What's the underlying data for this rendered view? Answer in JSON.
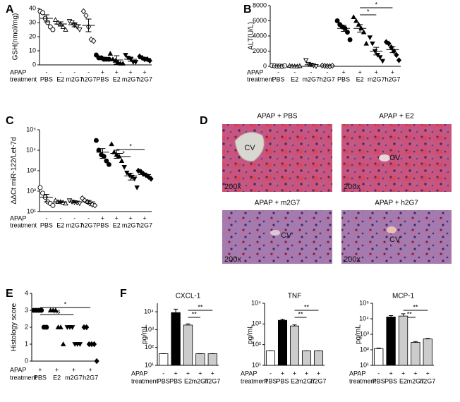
{
  "chart_data": [
    {
      "type": "dot",
      "panel": "A",
      "y_label": "GSH(nmol/mg)",
      "ylim": [
        0,
        40
      ],
      "yticks": [
        0,
        10,
        20,
        30,
        40
      ],
      "row_labels": [
        "APAP",
        "treatment"
      ],
      "apap": [
        "-",
        "-",
        "-",
        "-",
        "+",
        "+",
        "+",
        "+"
      ],
      "categories": [
        "PBS",
        "E2",
        "m2G7",
        "h2G7",
        "PBS",
        "E2",
        "m2G7",
        "h2G7"
      ],
      "markers": [
        "circle-open",
        "triangle-open",
        "triangle-down-open",
        "diamond-open",
        "circle",
        "triangle",
        "triangle-down",
        "diamond"
      ],
      "points": [
        [
          38,
          37,
          33,
          30,
          27,
          25
        ],
        [
          32,
          30,
          29,
          27,
          25
        ],
        [
          31,
          30,
          28,
          27,
          25
        ],
        [
          38,
          35,
          27,
          18,
          17
        ],
        [
          7,
          5,
          5,
          4,
          4,
          4
        ],
        [
          8,
          4,
          3,
          2,
          1,
          1
        ],
        [
          7,
          5,
          4,
          2,
          2
        ],
        [
          6,
          5,
          4,
          4,
          3
        ]
      ],
      "means": [
        33,
        29,
        28.5,
        28,
        5,
        3.5,
        4,
        4.5
      ],
      "errors": [
        2.5,
        1.5,
        1.5,
        4.5,
        0.5,
        3,
        1.5,
        0.8
      ]
    },
    {
      "type": "dot",
      "panel": "B",
      "y_label": "ALT(U/L)",
      "ylim": [
        0,
        8000
      ],
      "yticks": [
        0,
        2000,
        4000,
        6000,
        8000
      ],
      "row_labels": [
        "APAP",
        "treatment"
      ],
      "apap": [
        "-",
        "-",
        "-",
        "-",
        "+",
        "+",
        "+",
        "+"
      ],
      "categories": [
        "PBS",
        "E2",
        "m2G7",
        "h2G7",
        "PBS",
        "E2",
        "m2G7",
        "h2G7"
      ],
      "markers": [
        "circle-open",
        "triangle-open",
        "triangle-down-open",
        "diamond-open",
        "circle",
        "triangle",
        "triangle-down",
        "diamond"
      ],
      "points": [
        [
          100,
          50,
          20,
          30,
          0,
          60
        ],
        [
          80,
          20,
          10,
          0,
          50
        ],
        [
          800,
          300,
          200,
          100,
          0
        ],
        [
          100,
          50,
          20,
          0,
          80
        ],
        [
          6000,
          5500,
          5200,
          5000,
          4500,
          3500
        ],
        [
          6500,
          6000,
          5500,
          5000,
          4500,
          3000
        ],
        [
          3800,
          3000,
          2000,
          1500,
          1200,
          700
        ],
        [
          3200,
          3000,
          2500,
          2000,
          1500,
          800
        ]
      ],
      "means": [
        50,
        30,
        200,
        50,
        5000,
        5000,
        2000,
        2200
      ],
      "errors": [
        20,
        20,
        150,
        20,
        400,
        500,
        500,
        400
      ],
      "brackets": [
        {
          "label": "*",
          "between": [
            5,
            6
          ]
        },
        {
          "label": "*",
          "between": [
            5,
            7
          ]
        }
      ]
    },
    {
      "type": "dot",
      "panel": "C",
      "y_label": "ΔΔCt miR-122/Let-7d",
      "log": true,
      "ylim": [
        10,
        100000
      ],
      "yticks": [
        {
          "value": 10,
          "label": "10¹"
        },
        {
          "value": 100,
          "label": "10²"
        },
        {
          "value": 1000,
          "label": "10³"
        },
        {
          "value": 10000,
          "label": "10⁴"
        },
        {
          "value": 100000,
          "label": "10⁵"
        }
      ],
      "row_labels": [
        "APAP",
        "treatment"
      ],
      "apap": [
        "-",
        "-",
        "-",
        "-",
        "+",
        "+",
        "+",
        "+"
      ],
      "categories": [
        "PBS",
        "E2",
        "m2G7",
        "h2G7",
        "PBS",
        "E2",
        "m2G7",
        "h2G7"
      ],
      "markers": [
        "circle-open",
        "triangle-open",
        "triangle-down-open",
        "diamond-open",
        "circle",
        "triangle",
        "triangle-down",
        "diamond"
      ],
      "points": [
        [
          150,
          80,
          50,
          30,
          25,
          20
        ],
        [
          35,
          30,
          30,
          28,
          25
        ],
        [
          35,
          30,
          28,
          27,
          25
        ],
        [
          45,
          35,
          30,
          25,
          22,
          20
        ],
        [
          30000,
          10000,
          6000,
          5000,
          3000,
          2000
        ],
        [
          20000,
          8000,
          6000,
          5000,
          3000
        ],
        [
          1500,
          800,
          600,
          500,
          400,
          150
        ],
        [
          1000,
          900,
          700,
          600,
          500,
          400
        ]
      ],
      "means": [
        50,
        30,
        30,
        30,
        8000,
        7000,
        550,
        650
      ],
      "errors": [
        20,
        3,
        3,
        5,
        4000,
        3000,
        200,
        100
      ],
      "brackets": [
        {
          "label": "*",
          "between": [
            5,
            6
          ]
        },
        {
          "label": "*",
          "between": [
            5,
            7
          ]
        }
      ]
    },
    {
      "type": "dot",
      "panel": "E",
      "y_label": "Histology score",
      "ylim": [
        0,
        4
      ],
      "yticks": [
        0,
        1,
        2,
        3,
        4
      ],
      "row_labels": [
        "APAP",
        "treatment"
      ],
      "apap": [
        "+",
        "+",
        "+",
        "+"
      ],
      "categories": [
        "PBS",
        "E2",
        "m2G7",
        "h2G7"
      ],
      "markers": [
        "circle",
        "triangle",
        "triangle-down",
        "diamond"
      ],
      "points": [
        [
          3,
          3,
          3,
          3,
          2,
          2
        ],
        [
          3,
          3,
          3,
          2,
          2,
          1
        ],
        [
          2,
          2,
          2,
          1,
          1,
          1
        ],
        [
          2,
          2,
          1,
          1,
          1,
          0
        ]
      ],
      "brackets": [
        {
          "label": "ns",
          "between": [
            0,
            2
          ]
        },
        {
          "label": "*",
          "between": [
            0,
            3
          ]
        }
      ]
    },
    {
      "type": "bar",
      "panel": "F",
      "title": "CXCL-1",
      "y_label": "pg/mL",
      "log": true,
      "ylim": [
        10,
        30000
      ],
      "yticks": [
        {
          "value": 10,
          "label": "10¹"
        },
        {
          "value": 100,
          "label": "10²"
        },
        {
          "value": 1000,
          "label": "10³"
        },
        {
          "value": 10000,
          "label": "10⁴"
        }
      ],
      "row_labels": [
        "APAP",
        "treatment"
      ],
      "apap": [
        "-",
        "+",
        "+",
        "+",
        "+"
      ],
      "categories": [
        "PBS",
        "PBS",
        "E2",
        "m2G7",
        "h2G7"
      ],
      "colors": [
        "#ffffff",
        "#000000",
        "#cccccc",
        "#cccccc",
        "#cccccc"
      ],
      "values": [
        45,
        9000,
        1800,
        45,
        45
      ],
      "errors": [
        0,
        5000,
        300,
        0,
        0
      ],
      "brackets": [
        {
          "label": "**",
          "between": [
            2,
            3
          ]
        },
        {
          "label": "**",
          "between": [
            2,
            4
          ]
        }
      ]
    },
    {
      "type": "bar",
      "title": "TNF",
      "y_label": "pg/mL",
      "log": true,
      "ylim": [
        10,
        10000
      ],
      "yticks": [
        {
          "value": 10,
          "label": "10¹"
        },
        {
          "value": 100,
          "label": "10²"
        },
        {
          "value": 1000,
          "label": "10³"
        },
        {
          "value": 10000,
          "label": "10⁴"
        }
      ],
      "row_labels": [
        "APAP",
        "treatment"
      ],
      "apap": [
        "-",
        "+",
        "+",
        "+",
        "+"
      ],
      "categories": [
        "PBS",
        "PBS",
        "E2",
        "m2G7",
        "h2G7"
      ],
      "colors": [
        "#ffffff",
        "#000000",
        "#cccccc",
        "#cccccc",
        "#cccccc"
      ],
      "values": [
        50,
        1500,
        800,
        50,
        50
      ],
      "errors": [
        0,
        200,
        100,
        0,
        0
      ],
      "brackets": [
        {
          "label": "**",
          "between": [
            2,
            3
          ]
        },
        {
          "label": "**",
          "between": [
            2,
            4
          ]
        }
      ]
    },
    {
      "type": "bar",
      "title": "MCP-1",
      "y_label": "pg/mL",
      "log": true,
      "ylim": [
        10,
        100000
      ],
      "yticks": [
        {
          "value": 10,
          "label": "10¹"
        },
        {
          "value": 100,
          "label": "10²"
        },
        {
          "value": 1000,
          "label": "10³"
        },
        {
          "value": 10000,
          "label": "10⁴"
        },
        {
          "value": 100000,
          "label": "10⁵"
        }
      ],
      "row_labels": [
        "APAP",
        "treatment"
      ],
      "apap": [
        "-",
        "+",
        "+",
        "+",
        "+"
      ],
      "categories": [
        "PBS",
        "PBS",
        "E2",
        "m2G7",
        "h2G7"
      ],
      "colors": [
        "#ffffff",
        "#000000",
        "#cccccc",
        "#cccccc",
        "#cccccc"
      ],
      "values": [
        120,
        13000,
        15000,
        300,
        500
      ],
      "errors": [
        10,
        3000,
        6000,
        40,
        40
      ],
      "brackets": [
        {
          "label": "**",
          "between": [
            2,
            3
          ]
        },
        {
          "label": "**",
          "between": [
            2,
            4
          ]
        }
      ]
    }
  ],
  "histology": {
    "panel": "D",
    "images": [
      {
        "title": "APAP + PBS",
        "vessel": "CV",
        "magnification": "200x"
      },
      {
        "title": "APAP + E2",
        "vessel": "CV",
        "magnification": "200x"
      },
      {
        "title": "APAP + m2G7",
        "vessel": "CV",
        "magnification": "200x"
      },
      {
        "title": "APAP + h2G7",
        "vessel": "CV",
        "magnification": "200x"
      }
    ]
  }
}
